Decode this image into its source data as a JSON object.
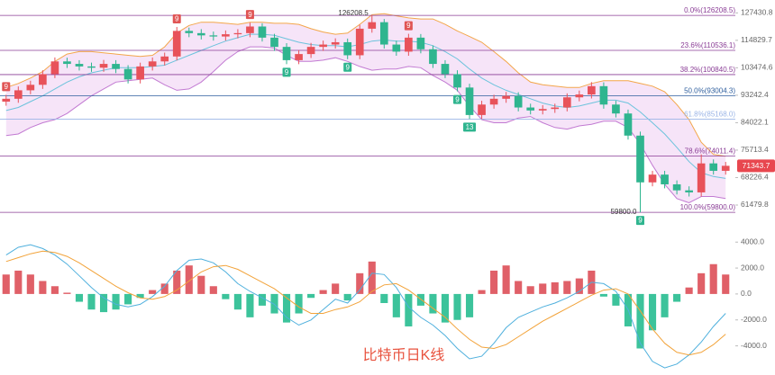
{
  "chart_data": [
    {
      "type": "candlestick",
      "title": "比特币日K线",
      "log_scale": true,
      "ylim": [
        55500,
        133800
      ],
      "yticks": [
        127430.8,
        114829.7,
        103474.6,
        93242.4,
        84022.1,
        75713.4,
        68226.4,
        61479.8
      ],
      "up_color": "#e8525a",
      "down_color": "#2fb58f",
      "open": [
        91000,
        92000,
        95000,
        97000,
        101000,
        106000,
        105000,
        104000,
        103500,
        105000,
        103000,
        99000,
        104000,
        106000,
        108000,
        119000,
        118000,
        117000,
        116500,
        117500,
        118000,
        121000,
        116000,
        112000,
        106500,
        109000,
        112000,
        113000,
        114000,
        108500,
        120000,
        123000,
        113000,
        110000,
        116000,
        111000,
        105000,
        101000,
        96000,
        86500,
        90000,
        92000,
        93000,
        89000,
        88000,
        88500,
        89000,
        92500,
        93500,
        96500,
        90000,
        87000,
        80000,
        67000,
        69000,
        66500,
        65000,
        64500,
        72000,
        70000
      ],
      "high": [
        93400,
        96400,
        98500,
        102500,
        107600,
        107500,
        106500,
        105500,
        106600,
        106500,
        104500,
        105500,
        107600,
        109600,
        120800,
        120500,
        119800,
        118700,
        119200,
        119800,
        122800,
        122500,
        117700,
        113600,
        110600,
        113700,
        114700,
        115700,
        115600,
        121800,
        126208.5,
        124500,
        114700,
        117700,
        117600,
        112600,
        106500,
        102500,
        97400,
        91300,
        93400,
        94400,
        94300,
        90300,
        89800,
        90300,
        93900,
        94900,
        98000,
        97900,
        91300,
        88300,
        81200,
        70000,
        70000,
        67500,
        66000,
        74500,
        73100,
        72400
      ],
      "low": [
        89600,
        90600,
        93600,
        95500,
        99500,
        103400,
        102400,
        101900,
        101900,
        101400,
        97500,
        97500,
        102400,
        104400,
        106400,
        116200,
        115200,
        114700,
        114700,
        115700,
        116200,
        114300,
        110300,
        104900,
        104900,
        107400,
        110300,
        111300,
        106900,
        106900,
        118200,
        111300,
        108300,
        108300,
        109300,
        103400,
        99500,
        94600,
        85200,
        85200,
        88600,
        90600,
        87700,
        86700,
        86700,
        87200,
        87700,
        91100,
        92100,
        88600,
        85700,
        78800,
        59800,
        66000,
        65500,
        64000,
        63500,
        63500,
        69000,
        69000
      ],
      "close": [
        92000,
        95000,
        97000,
        101000,
        106000,
        105000,
        104000,
        103500,
        105000,
        103000,
        99000,
        104000,
        106000,
        108000,
        119000,
        118000,
        117000,
        116500,
        117500,
        118000,
        121000,
        116000,
        112000,
        106500,
        109000,
        112000,
        113000,
        114000,
        108500,
        120000,
        123000,
        113000,
        110000,
        116000,
        111000,
        105000,
        101000,
        96000,
        86500,
        90000,
        92000,
        93000,
        89000,
        88000,
        88500,
        89000,
        92500,
        93500,
        96500,
        90000,
        87000,
        80000,
        67000,
        69000,
        66500,
        65000,
        64500,
        72000,
        70000,
        71343.7
      ],
      "high_labels": [
        null,
        null,
        null,
        null,
        null,
        null,
        null,
        null,
        null,
        null,
        null,
        null,
        null,
        null,
        null,
        null,
        null,
        null,
        null,
        null,
        null,
        null,
        null,
        null,
        null,
        null,
        null,
        null,
        null,
        null,
        "126208.5",
        null,
        null,
        null,
        null,
        null,
        null,
        null,
        null,
        null,
        null,
        null,
        null,
        null,
        null,
        null,
        null,
        null,
        null,
        null,
        null,
        null,
        null,
        null,
        null,
        null,
        null,
        null,
        null,
        null
      ],
      "low_labels": [
        null,
        null,
        null,
        null,
        null,
        null,
        null,
        null,
        null,
        null,
        null,
        null,
        null,
        null,
        null,
        null,
        null,
        null,
        null,
        null,
        null,
        null,
        null,
        null,
        null,
        null,
        null,
        null,
        null,
        null,
        null,
        null,
        null,
        null,
        null,
        null,
        null,
        null,
        null,
        null,
        null,
        null,
        null,
        null,
        null,
        null,
        null,
        null,
        null,
        null,
        null,
        null,
        "59800.0",
        null,
        null,
        null,
        null,
        null,
        null,
        null
      ],
      "signals_top": [
        "9",
        null,
        null,
        null,
        null,
        null,
        null,
        null,
        null,
        null,
        null,
        null,
        null,
        null,
        "9",
        null,
        null,
        null,
        null,
        null,
        "9",
        null,
        null,
        null,
        null,
        null,
        null,
        null,
        null,
        null,
        null,
        null,
        null,
        "9",
        null,
        null,
        null,
        null,
        null,
        null,
        null,
        null,
        null,
        null,
        null,
        null,
        null,
        null,
        null,
        null,
        null,
        null,
        null,
        null,
        null,
        null,
        null,
        null,
        null,
        null
      ],
      "signals_bottom": [
        null,
        null,
        null,
        null,
        null,
        null,
        null,
        null,
        null,
        null,
        null,
        null,
        null,
        null,
        null,
        null,
        null,
        null,
        null,
        null,
        null,
        null,
        null,
        "9",
        null,
        null,
        null,
        null,
        "9",
        null,
        null,
        null,
        null,
        null,
        null,
        null,
        null,
        "9",
        "13",
        null,
        null,
        null,
        null,
        null,
        null,
        null,
        null,
        null,
        null,
        null,
        null,
        null,
        "9",
        null,
        null,
        null,
        null,
        null,
        null,
        null
      ],
      "signal_top_color": "#e05555",
      "signal_bottom_color": "#2fb58f",
      "bollinger": {
        "upper": [
          96000,
          97500,
          99500,
          102000,
          106000,
          109000,
          110000,
          110000,
          109500,
          109000,
          108500,
          108000,
          108500,
          112000,
          118000,
          121500,
          123000,
          123000,
          122500,
          122000,
          123000,
          123000,
          122500,
          122500,
          122000,
          120000,
          118500,
          117500,
          118000,
          122000,
          126500,
          127000,
          126000,
          125000,
          124500,
          124500,
          122000,
          119000,
          116500,
          114000,
          110000,
          106000,
          101500,
          98000,
          97000,
          96500,
          96000,
          96000,
          97500,
          98500,
          98500,
          98500,
          97500,
          96500,
          94500,
          90000,
          85000,
          78000,
          74500,
          74000
        ],
        "mid": [
          88000,
          89000,
          91000,
          93000,
          95500,
          98000,
          100000,
          101500,
          102500,
          103500,
          103500,
          103500,
          104000,
          104500,
          106500,
          108500,
          110500,
          112500,
          114500,
          116000,
          117500,
          117500,
          117000,
          115500,
          114000,
          113000,
          112500,
          112500,
          112000,
          113000,
          114500,
          115000,
          114500,
          114500,
          114000,
          112500,
          110000,
          107000,
          103000,
          99500,
          97000,
          95000,
          93500,
          92000,
          90500,
          89500,
          89000,
          89500,
          90500,
          91500,
          91500,
          90500,
          87500,
          84000,
          80500,
          76500,
          72500,
          69500,
          68500,
          68000
        ],
        "lower": [
          80000,
          80500,
          82500,
          84000,
          85000,
          87000,
          90000,
          93000,
          95500,
          98000,
          98500,
          99000,
          99500,
          97000,
          95000,
          95500,
          98000,
          102000,
          106500,
          110000,
          112000,
          112000,
          111500,
          108500,
          106000,
          106000,
          106500,
          107500,
          106000,
          104000,
          102500,
          103000,
          103000,
          104000,
          103500,
          100500,
          98000,
          95000,
          89500,
          85000,
          84000,
          84000,
          85500,
          86000,
          84000,
          82500,
          82000,
          83000,
          83500,
          84500,
          84500,
          82500,
          77500,
          71500,
          66500,
          63000,
          62000,
          63500,
          63500,
          63000
        ],
        "upper_color": "#f3a64a",
        "mid_color": "#6cc3dc",
        "lower_color": "#c27ad2",
        "fill": "#f0d2f4"
      },
      "fib_levels": [
        {
          "label": "0.0%(126208.5)",
          "value": 126208.5,
          "color": "#8a3d96"
        },
        {
          "label": "23.6%(110536.1)",
          "value": 110536.1,
          "color": "#8a3d96"
        },
        {
          "label": "38.2%(100840.5)",
          "value": 100840.5,
          "color": "#8a3d96"
        },
        {
          "label": "50.0%(93004.3)",
          "value": 93004.3,
          "color": "#2f5f9e"
        },
        {
          "label": "61.8%(85168.0)",
          "value": 85168.0,
          "color": "#9ab4e6"
        },
        {
          "label": "78.6%(74011.4)",
          "value": 74011.4,
          "color": "#8a3d96"
        },
        {
          "label": "100.0%(59800.0)",
          "value": 59800.0,
          "color": "#8a3d96"
        }
      ],
      "last_price": 71343.7,
      "last_price_color": "#e8474f"
    },
    {
      "type": "macd",
      "ylim": [
        -5900,
        4500
      ],
      "yticks": [
        {
          "value": 4000,
          "label": "4000.0"
        },
        {
          "value": 2000,
          "label": "2000.0"
        },
        {
          "value": 0,
          "label": "0.0"
        },
        {
          "value": -2000,
          "label": "-2000.0"
        },
        {
          "value": -4000,
          "label": "-4000.0"
        }
      ],
      "histogram": [
        1500,
        1800,
        1500,
        1000,
        600,
        100,
        -600,
        -1200,
        -1400,
        -1200,
        -800,
        -300,
        300,
        800,
        1800,
        2200,
        1400,
        600,
        -400,
        -1200,
        -1800,
        -900,
        -1500,
        -2200,
        -1500,
        -300,
        300,
        800,
        -500,
        1600,
        2500,
        -700,
        -1800,
        -2500,
        -900,
        -1500,
        -2200,
        -2000,
        -1800,
        300,
        1800,
        2200,
        1000,
        600,
        800,
        900,
        1000,
        1200,
        1800,
        -200,
        -900,
        -2500,
        -4200,
        -2800,
        -1800,
        -600,
        500,
        1600,
        2300,
        1500
      ],
      "up_color": "#e06068",
      "down_color": "#3cc39b",
      "series": [
        {
          "color": "#4fb0dd",
          "values": [
            3000,
            3600,
            3800,
            3500,
            3000,
            2300,
            1400,
            500,
            -300,
            -800,
            -1000,
            -800,
            -200,
            600,
            1800,
            2600,
            2700,
            2400,
            1700,
            800,
            200,
            -300,
            -800,
            -1800,
            -2400,
            -2000,
            -1200,
            -400,
            -700,
            300,
            1600,
            1500,
            500,
            -1000,
            -1800,
            -2400,
            -3200,
            -4200,
            -5000,
            -4800,
            -3800,
            -2600,
            -1800,
            -1400,
            -1000,
            -700,
            -300,
            200,
            900,
            800,
            200,
            -1200,
            -3800,
            -5200,
            -5700,
            -5400,
            -4700,
            -3700,
            -2500,
            -1500
          ]
        },
        {
          "color": "#f2a33a",
          "values": [
            2500,
            2800,
            3100,
            3300,
            3200,
            2900,
            2400,
            1800,
            1200,
            600,
            100,
            -300,
            -400,
            -200,
            300,
            1000,
            1700,
            2100,
            2200,
            1900,
            1400,
            900,
            400,
            -300,
            -1000,
            -1500,
            -1500,
            -1200,
            -1000,
            -600,
            200,
            700,
            800,
            300,
            -400,
            -1100,
            -1800,
            -2700,
            -3500,
            -4100,
            -4200,
            -3900,
            -3300,
            -2700,
            -2100,
            -1600,
            -1100,
            -600,
            -100,
            300,
            400,
            0,
            -1300,
            -2700,
            -3800,
            -4500,
            -4700,
            -4500,
            -3900,
            -3100
          ]
        }
      ]
    }
  ]
}
